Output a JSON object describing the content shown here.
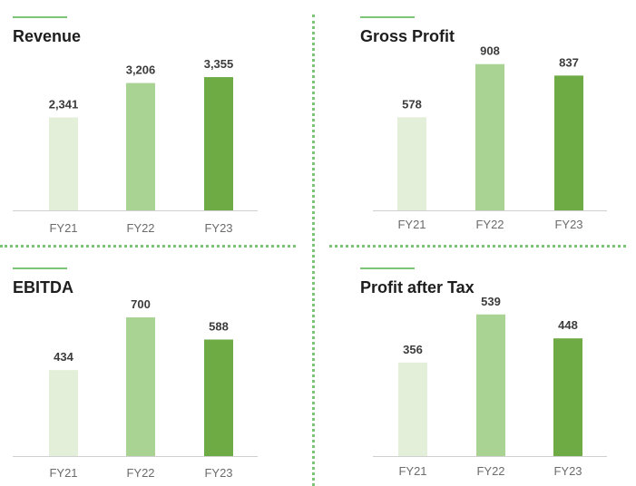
{
  "chart_data": [
    {
      "type": "bar",
      "title": "Revenue",
      "categories": [
        "FY21",
        "FY22",
        "FY23"
      ],
      "values": [
        2341,
        3206,
        3355
      ],
      "value_labels": [
        "2,341",
        "3,206",
        "3,355"
      ],
      "ylim": [
        0,
        4150
      ],
      "grid": false
    },
    {
      "type": "bar",
      "title": "Gross Profit",
      "categories": [
        "FY21",
        "FY22",
        "FY23"
      ],
      "values": [
        578,
        908,
        837
      ],
      "value_labels": [
        "578",
        "908",
        "837"
      ],
      "ylim": [
        0,
        1130
      ],
      "grid": false
    },
    {
      "type": "bar",
      "title": "EBITDA",
      "categories": [
        "FY21",
        "FY22",
        "FY23"
      ],
      "values": [
        434,
        700,
        588
      ],
      "value_labels": [
        "434",
        "700",
        "588"
      ],
      "ylim": [
        0,
        875
      ],
      "grid": false
    },
    {
      "type": "bar",
      "title": "Profit after Tax",
      "categories": [
        "FY21",
        "FY22",
        "FY23"
      ],
      "values": [
        356,
        539,
        448
      ],
      "value_labels": [
        "356",
        "539",
        "448"
      ],
      "ylim": [
        0,
        670
      ],
      "grid": false
    }
  ],
  "colors": {
    "bars": [
      "#e3efd9",
      "#a8d392",
      "#6fab45"
    ],
    "accent": "#7cc576",
    "value_label": "#3c3c3c",
    "tick_label": "#6b6b6b",
    "baseline": "#d0d0d0"
  }
}
